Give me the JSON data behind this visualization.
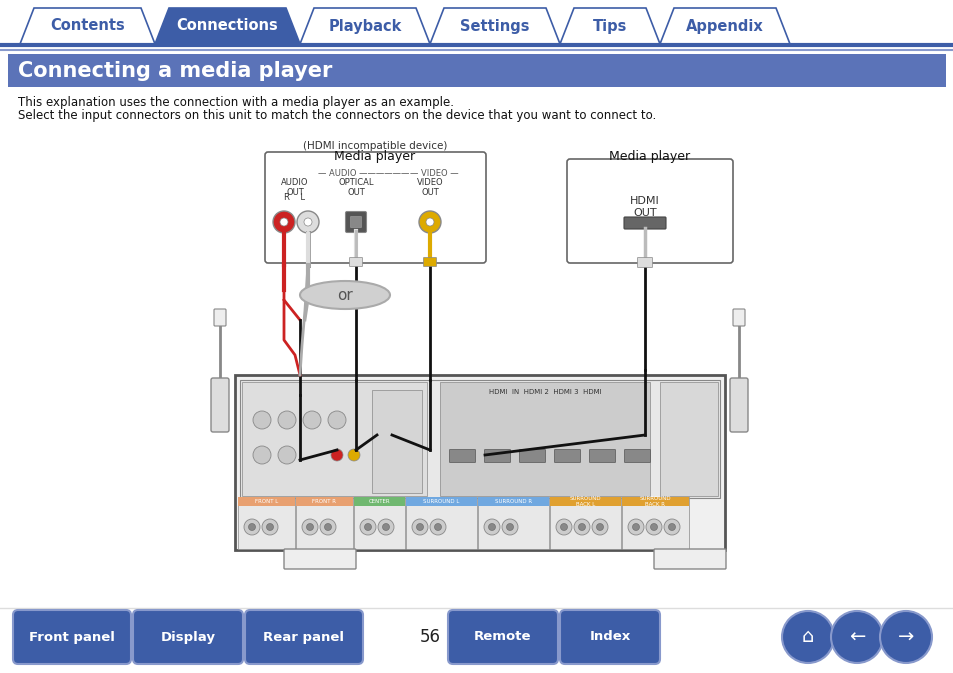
{
  "tab_labels": [
    "Contents",
    "Connections",
    "Playback",
    "Settings",
    "Tips",
    "Appendix"
  ],
  "active_tab": 1,
  "tab_color_active": "#3d5da7",
  "tab_color_inactive": "#ffffff",
  "tab_text_active": "#ffffff",
  "tab_text_inactive": "#3d5da7",
  "tab_border_color": "#3d5da7",
  "title_text": "Connecting a media player",
  "title_bg": "#5b73b8",
  "title_text_color": "#ffffff",
  "body_text1": "This explanation uses the connection with a media player as an example.",
  "body_text2": "Select the input connectors on this unit to match the connectors on the device that you want to connect to.",
  "hdmi_label": "(HDMI incompatible device)",
  "media_player_label1": "Media player",
  "media_player_label2": "Media player",
  "or_text": "or",
  "page_number": "56",
  "bottom_buttons": [
    "Front panel",
    "Display",
    "Rear panel",
    "Remote",
    "Index"
  ],
  "bottom_bg": "#3d5da7",
  "bottom_text_color": "#ffffff",
  "bg_color": "#ffffff",
  "nav_line_color": "#3d5da7"
}
